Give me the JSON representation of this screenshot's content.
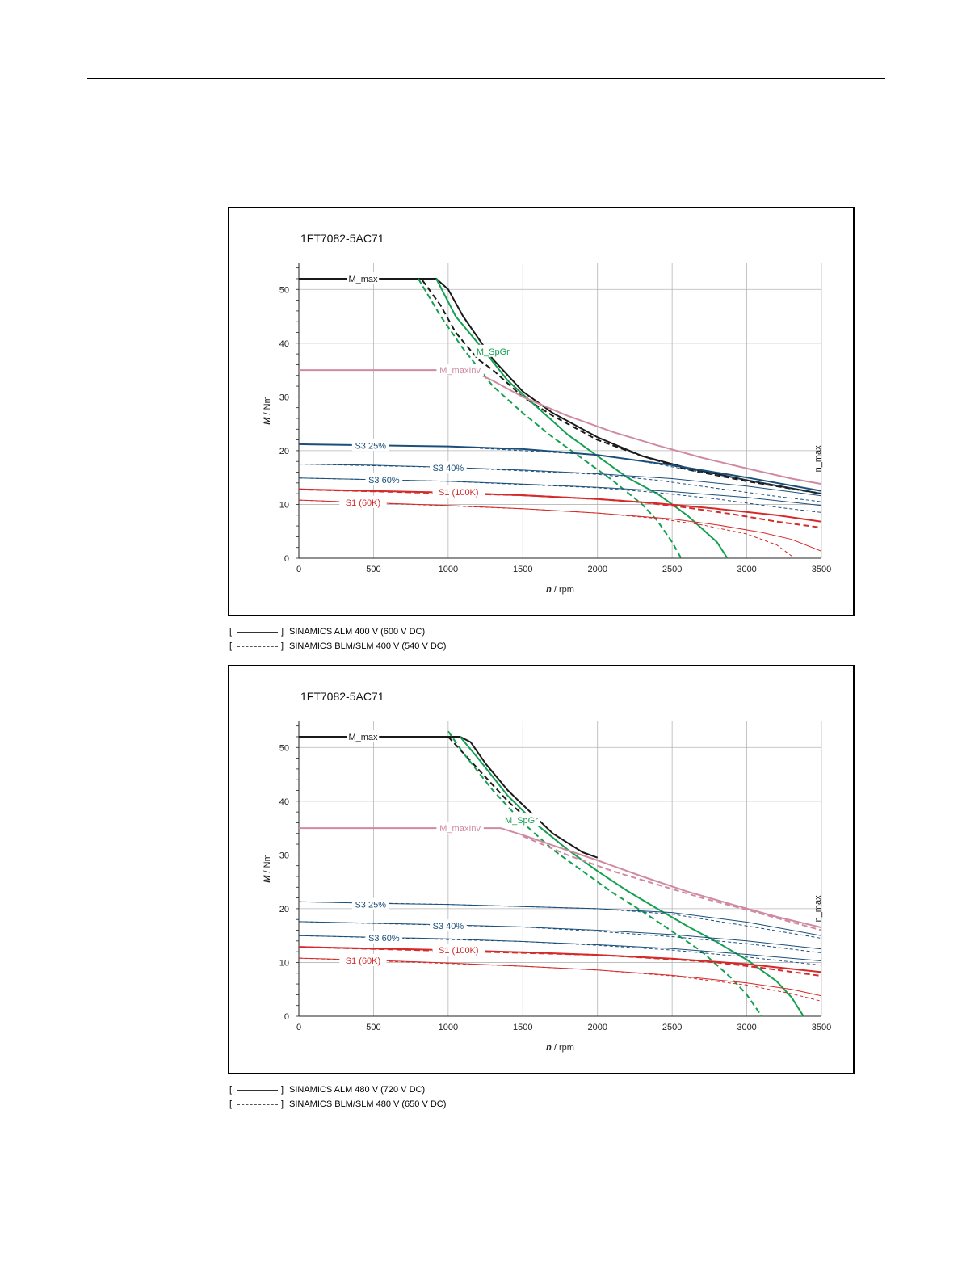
{
  "legends": [
    {
      "solid": "SINAMICS ALM 400 V (600 V DC)",
      "dashed": "SINAMICS BLM/SLM 400 V (540 V DC)"
    },
    {
      "solid": "SINAMICS ALM 480 V (720 V DC)",
      "dashed": "SINAMICS BLM/SLM 480 V (650 V DC)"
    }
  ],
  "colors": {
    "black": "#1a1a1a",
    "green": "#13a050",
    "mauve": "#d08aa0",
    "blue": "#1b4f7a",
    "red": "#d42a2a"
  },
  "chart_data": [
    {
      "type": "line",
      "title": "1FT7082-5AC71",
      "xlabel_italic": "n",
      "xlabel_rest": " / rpm",
      "ylabel_italic": "M",
      "ylabel_rest": " / Nm",
      "xlim": [
        0,
        3500
      ],
      "ylim": [
        0,
        55
      ],
      "xticks": [
        0,
        500,
        1000,
        1500,
        2000,
        2500,
        3000,
        3500
      ],
      "yticks": [
        0,
        10,
        20,
        30,
        40,
        50
      ],
      "grid": true,
      "annotations": [
        {
          "text": "M_max",
          "x": 430,
          "y": 52,
          "color": "black"
        },
        {
          "text": "M_SpGr",
          "x": 1300,
          "y": 38.5,
          "color": "green"
        },
        {
          "text": "M_maxInv",
          "x": 1080,
          "y": 35,
          "color": "mauve"
        },
        {
          "text": "S3 25%",
          "x": 480,
          "y": 21,
          "color": "blue"
        },
        {
          "text": "S3 40%",
          "x": 1000,
          "y": 16.8,
          "color": "blue"
        },
        {
          "text": "S3 60%",
          "x": 570,
          "y": 14.6,
          "color": "blue"
        },
        {
          "text": "S1 (100K)",
          "x": 1070,
          "y": 12.3,
          "color": "red"
        },
        {
          "text": "S1 (60K)",
          "x": 430,
          "y": 10.4,
          "color": "red"
        },
        {
          "text": "n_max",
          "x": 3500,
          "y": 18.5,
          "color": "black",
          "rotate": true
        }
      ],
      "series": [
        {
          "color": "black",
          "width": 2,
          "dash": false,
          "x": [
            0,
            920,
            1000,
            1100,
            1200,
            1300,
            1500,
            1700,
            2000,
            2300,
            2600,
            3000,
            3500
          ],
          "y": [
            52,
            52,
            50,
            45,
            41,
            37,
            31,
            27,
            22.5,
            19,
            16.8,
            14.5,
            12
          ]
        },
        {
          "color": "black",
          "width": 2,
          "dash": true,
          "x": [
            0,
            820,
            950,
            1050,
            1200,
            1300,
            1500,
            1700,
            2000,
            2300,
            2600,
            3000,
            3500
          ],
          "y": [
            52,
            52,
            47,
            42,
            37,
            35,
            30,
            26.5,
            22,
            19,
            16.5,
            14.3,
            12
          ]
        },
        {
          "color": "green",
          "width": 2,
          "dash": false,
          "x": [
            920,
            1050,
            1200,
            1400,
            1600,
            1800,
            2000,
            2200,
            2400,
            2600,
            2700,
            2800,
            2870
          ],
          "y": [
            52,
            45,
            40,
            33,
            28,
            23,
            19,
            15,
            12,
            8,
            5.5,
            3,
            0
          ]
        },
        {
          "color": "green",
          "width": 2,
          "dash": true,
          "x": [
            800,
            950,
            1100,
            1300,
            1500,
            1700,
            1900,
            2100,
            2300,
            2400,
            2500,
            2560
          ],
          "y": [
            52,
            45,
            39,
            32,
            27,
            22.5,
            18.5,
            14.5,
            10,
            7,
            3,
            0
          ]
        },
        {
          "color": "mauve",
          "width": 2,
          "dash": false,
          "x": [
            0,
            1150,
            1300,
            1500,
            1800,
            2100,
            2400,
            2700,
            3000,
            3300,
            3500
          ],
          "y": [
            35,
            35,
            33,
            30,
            26.5,
            23.5,
            21,
            18.7,
            16.7,
            14.8,
            13.8
          ]
        },
        {
          "color": "blue",
          "width": 2,
          "dash": false,
          "x": [
            0,
            500,
            1000,
            1500,
            2000,
            2500,
            3000,
            3500
          ],
          "y": [
            21.2,
            21,
            20.8,
            20.3,
            19.2,
            17.3,
            15,
            12.5
          ]
        },
        {
          "color": "blue",
          "width": 1,
          "dash": true,
          "x": [
            0,
            1000,
            2000,
            2300,
            2600,
            3000,
            3500
          ],
          "y": [
            21.2,
            20.8,
            19.2,
            18,
            16.5,
            14.5,
            12
          ]
        },
        {
          "color": "blue",
          "width": 1,
          "dash": false,
          "x": [
            0,
            500,
            1000,
            1500,
            2000,
            2500,
            3000,
            3500
          ],
          "y": [
            17.5,
            17.3,
            16.9,
            16.4,
            15.7,
            14.8,
            13.4,
            11.6
          ]
        },
        {
          "color": "blue",
          "width": 1,
          "dash": true,
          "x": [
            0,
            1000,
            2000,
            2400,
            2800,
            3200,
            3500
          ],
          "y": [
            17.5,
            16.9,
            15.6,
            14.5,
            13,
            11.5,
            10.5
          ]
        },
        {
          "color": "blue",
          "width": 1,
          "dash": false,
          "x": [
            0,
            500,
            1000,
            1500,
            2000,
            2500,
            3000,
            3500
          ],
          "y": [
            14.9,
            14.6,
            14.3,
            13.8,
            13.2,
            12.4,
            11.3,
            9.8
          ]
        },
        {
          "color": "blue",
          "width": 1,
          "dash": true,
          "x": [
            0,
            1000,
            2000,
            2400,
            2800,
            3200,
            3500
          ],
          "y": [
            14.9,
            14.3,
            13.1,
            12.2,
            11,
            9.5,
            8.5
          ]
        },
        {
          "color": "red",
          "width": 2,
          "dash": false,
          "x": [
            0,
            500,
            1000,
            1500,
            2000,
            2400,
            2800,
            3200,
            3500
          ],
          "y": [
            12.8,
            12.5,
            12.2,
            11.7,
            11,
            10.2,
            9.2,
            8,
            6.8
          ]
        },
        {
          "color": "red",
          "width": 2,
          "dash": true,
          "x": [
            0,
            1500,
            2000,
            2300,
            2600,
            2900,
            3200,
            3500
          ],
          "y": [
            12.8,
            11.7,
            11,
            10.4,
            9.4,
            8.2,
            6.8,
            5.7
          ]
        },
        {
          "color": "red",
          "width": 1,
          "dash": false,
          "x": [
            0,
            500,
            1000,
            1500,
            2000,
            2500,
            2800,
            3100,
            3300,
            3500
          ],
          "y": [
            10.8,
            10.3,
            9.8,
            9.2,
            8.4,
            7.3,
            6.2,
            4.8,
            3.5,
            1.3
          ]
        },
        {
          "color": "red",
          "width": 1,
          "dash": true,
          "x": [
            0,
            1500,
            2000,
            2400,
            2700,
            3000,
            3200,
            3320
          ],
          "y": [
            10.8,
            9.2,
            8.4,
            7.4,
            6.2,
            4.5,
            2.5,
            0
          ]
        }
      ]
    },
    {
      "type": "line",
      "title": "1FT7082-5AC71",
      "xlabel_italic": "n",
      "xlabel_rest": " / rpm",
      "ylabel_italic": "M",
      "ylabel_rest": " / Nm",
      "xlim": [
        0,
        3500
      ],
      "ylim": [
        0,
        55
      ],
      "xticks": [
        0,
        500,
        1000,
        1500,
        2000,
        2500,
        3000,
        3500
      ],
      "yticks": [
        0,
        10,
        20,
        30,
        40,
        50
      ],
      "grid": true,
      "annotations": [
        {
          "text": "M_max",
          "x": 430,
          "y": 52,
          "color": "black"
        },
        {
          "text": "M_SpGr",
          "x": 1490,
          "y": 36.5,
          "color": "green"
        },
        {
          "text": "M_maxInv",
          "x": 1080,
          "y": 35,
          "color": "mauve"
        },
        {
          "text": "S3 25%",
          "x": 480,
          "y": 20.8,
          "color": "blue"
        },
        {
          "text": "S3 40%",
          "x": 1000,
          "y": 16.8,
          "color": "blue"
        },
        {
          "text": "S3 60%",
          "x": 570,
          "y": 14.6,
          "color": "blue"
        },
        {
          "text": "S1 (100K)",
          "x": 1070,
          "y": 12.3,
          "color": "red"
        },
        {
          "text": "S1 (60K)",
          "x": 430,
          "y": 10.4,
          "color": "red"
        },
        {
          "text": "n_max",
          "x": 3500,
          "y": 20,
          "color": "black",
          "rotate": true
        }
      ],
      "series": [
        {
          "color": "black",
          "width": 2,
          "dash": false,
          "x": [
            0,
            1080,
            1150,
            1250,
            1400,
            1550,
            1700,
            1900,
            2000
          ],
          "y": [
            52,
            52,
            51,
            47,
            42,
            38,
            34,
            30.5,
            29.5
          ]
        },
        {
          "color": "black",
          "width": 2,
          "dash": true,
          "x": [
            1000,
            1100,
            1200,
            1300,
            1400,
            1500
          ],
          "y": [
            52,
            49,
            46,
            43,
            40,
            37.5
          ]
        },
        {
          "color": "green",
          "width": 2,
          "dash": false,
          "x": [
            1080,
            1200,
            1400,
            1600,
            1800,
            2000,
            2200,
            2400,
            2600,
            2800,
            3000,
            3200,
            3300,
            3380
          ],
          "y": [
            52,
            48,
            41,
            35.5,
            31,
            27,
            23.3,
            20,
            16.8,
            13.8,
            10.5,
            6.5,
            3.5,
            0
          ]
        },
        {
          "color": "green",
          "width": 2,
          "dash": true,
          "x": [
            1000,
            1100,
            1300,
            1500,
            1700,
            1900,
            2100,
            2300,
            2500,
            2700,
            2900,
            3000,
            3100
          ],
          "y": [
            53,
            49,
            42,
            36,
            31,
            27,
            23,
            19.5,
            15.8,
            12,
            7,
            4,
            0
          ]
        },
        {
          "color": "mauve",
          "width": 2,
          "dash": false,
          "x": [
            0,
            1350,
            1500,
            1700,
            2000,
            2300,
            2600,
            2900,
            3200,
            3500
          ],
          "y": [
            35,
            35,
            33.7,
            31.8,
            29,
            26,
            23.2,
            20.8,
            18.5,
            16.5
          ]
        },
        {
          "color": "mauve",
          "width": 2,
          "dash": true,
          "x": [
            1500,
            1800,
            2100,
            2400,
            2700,
            3000,
            3300,
            3500
          ],
          "y": [
            33.5,
            30,
            27,
            24.5,
            22,
            19.8,
            17.5,
            16
          ]
        },
        {
          "color": "blue",
          "width": 1,
          "dash": false,
          "x": [
            0,
            500,
            1000,
            1500,
            2000,
            2500,
            3000,
            3500
          ],
          "y": [
            21.3,
            21,
            20.8,
            20.4,
            20,
            19.3,
            17.5,
            15
          ]
        },
        {
          "color": "blue",
          "width": 1,
          "dash": true,
          "x": [
            0,
            1000,
            2000,
            2500,
            3000,
            3500
          ],
          "y": [
            21.3,
            20.8,
            20,
            19,
            16.8,
            14.5
          ]
        },
        {
          "color": "blue",
          "width": 1,
          "dash": false,
          "x": [
            0,
            500,
            1000,
            1500,
            2000,
            2500,
            3000,
            3500
          ],
          "y": [
            17.6,
            17.3,
            17,
            16.6,
            16,
            15.2,
            14,
            12.5
          ]
        },
        {
          "color": "blue",
          "width": 1,
          "dash": true,
          "x": [
            0,
            1500,
            2000,
            2500,
            3000,
            3500
          ],
          "y": [
            17.6,
            16.6,
            15.8,
            14.8,
            13.5,
            11.8
          ]
        },
        {
          "color": "blue",
          "width": 1,
          "dash": false,
          "x": [
            0,
            500,
            1000,
            1500,
            2000,
            2500,
            3000,
            3500
          ],
          "y": [
            15,
            14.7,
            14.4,
            13.9,
            13.3,
            12.6,
            11.5,
            10.3
          ]
        },
        {
          "color": "blue",
          "width": 1,
          "dash": true,
          "x": [
            0,
            1500,
            2000,
            2500,
            3000,
            3500
          ],
          "y": [
            15,
            13.9,
            13.2,
            12.3,
            11,
            9.5
          ]
        },
        {
          "color": "red",
          "width": 2,
          "dash": false,
          "x": [
            0,
            500,
            1000,
            1500,
            2000,
            2500,
            3000,
            3500
          ],
          "y": [
            12.9,
            12.6,
            12.3,
            11.9,
            11.4,
            10.7,
            9.7,
            8.2
          ]
        },
        {
          "color": "red",
          "width": 2,
          "dash": true,
          "x": [
            0,
            2000,
            2500,
            2800,
            3100,
            3500
          ],
          "y": [
            12.9,
            11.4,
            10.6,
            10,
            9,
            7.5
          ]
        },
        {
          "color": "red",
          "width": 1,
          "dash": false,
          "x": [
            0,
            500,
            1000,
            1500,
            2000,
            2500,
            3000,
            3300,
            3500
          ],
          "y": [
            10.8,
            10.4,
            9.9,
            9.3,
            8.6,
            7.6,
            6.2,
            5,
            3.8
          ]
        },
        {
          "color": "red",
          "width": 1,
          "dash": true,
          "x": [
            0,
            1500,
            2000,
            2500,
            3000,
            3300,
            3500
          ],
          "y": [
            10.8,
            9.3,
            8.6,
            7.5,
            5.8,
            4.2,
            2.8
          ]
        }
      ]
    }
  ]
}
